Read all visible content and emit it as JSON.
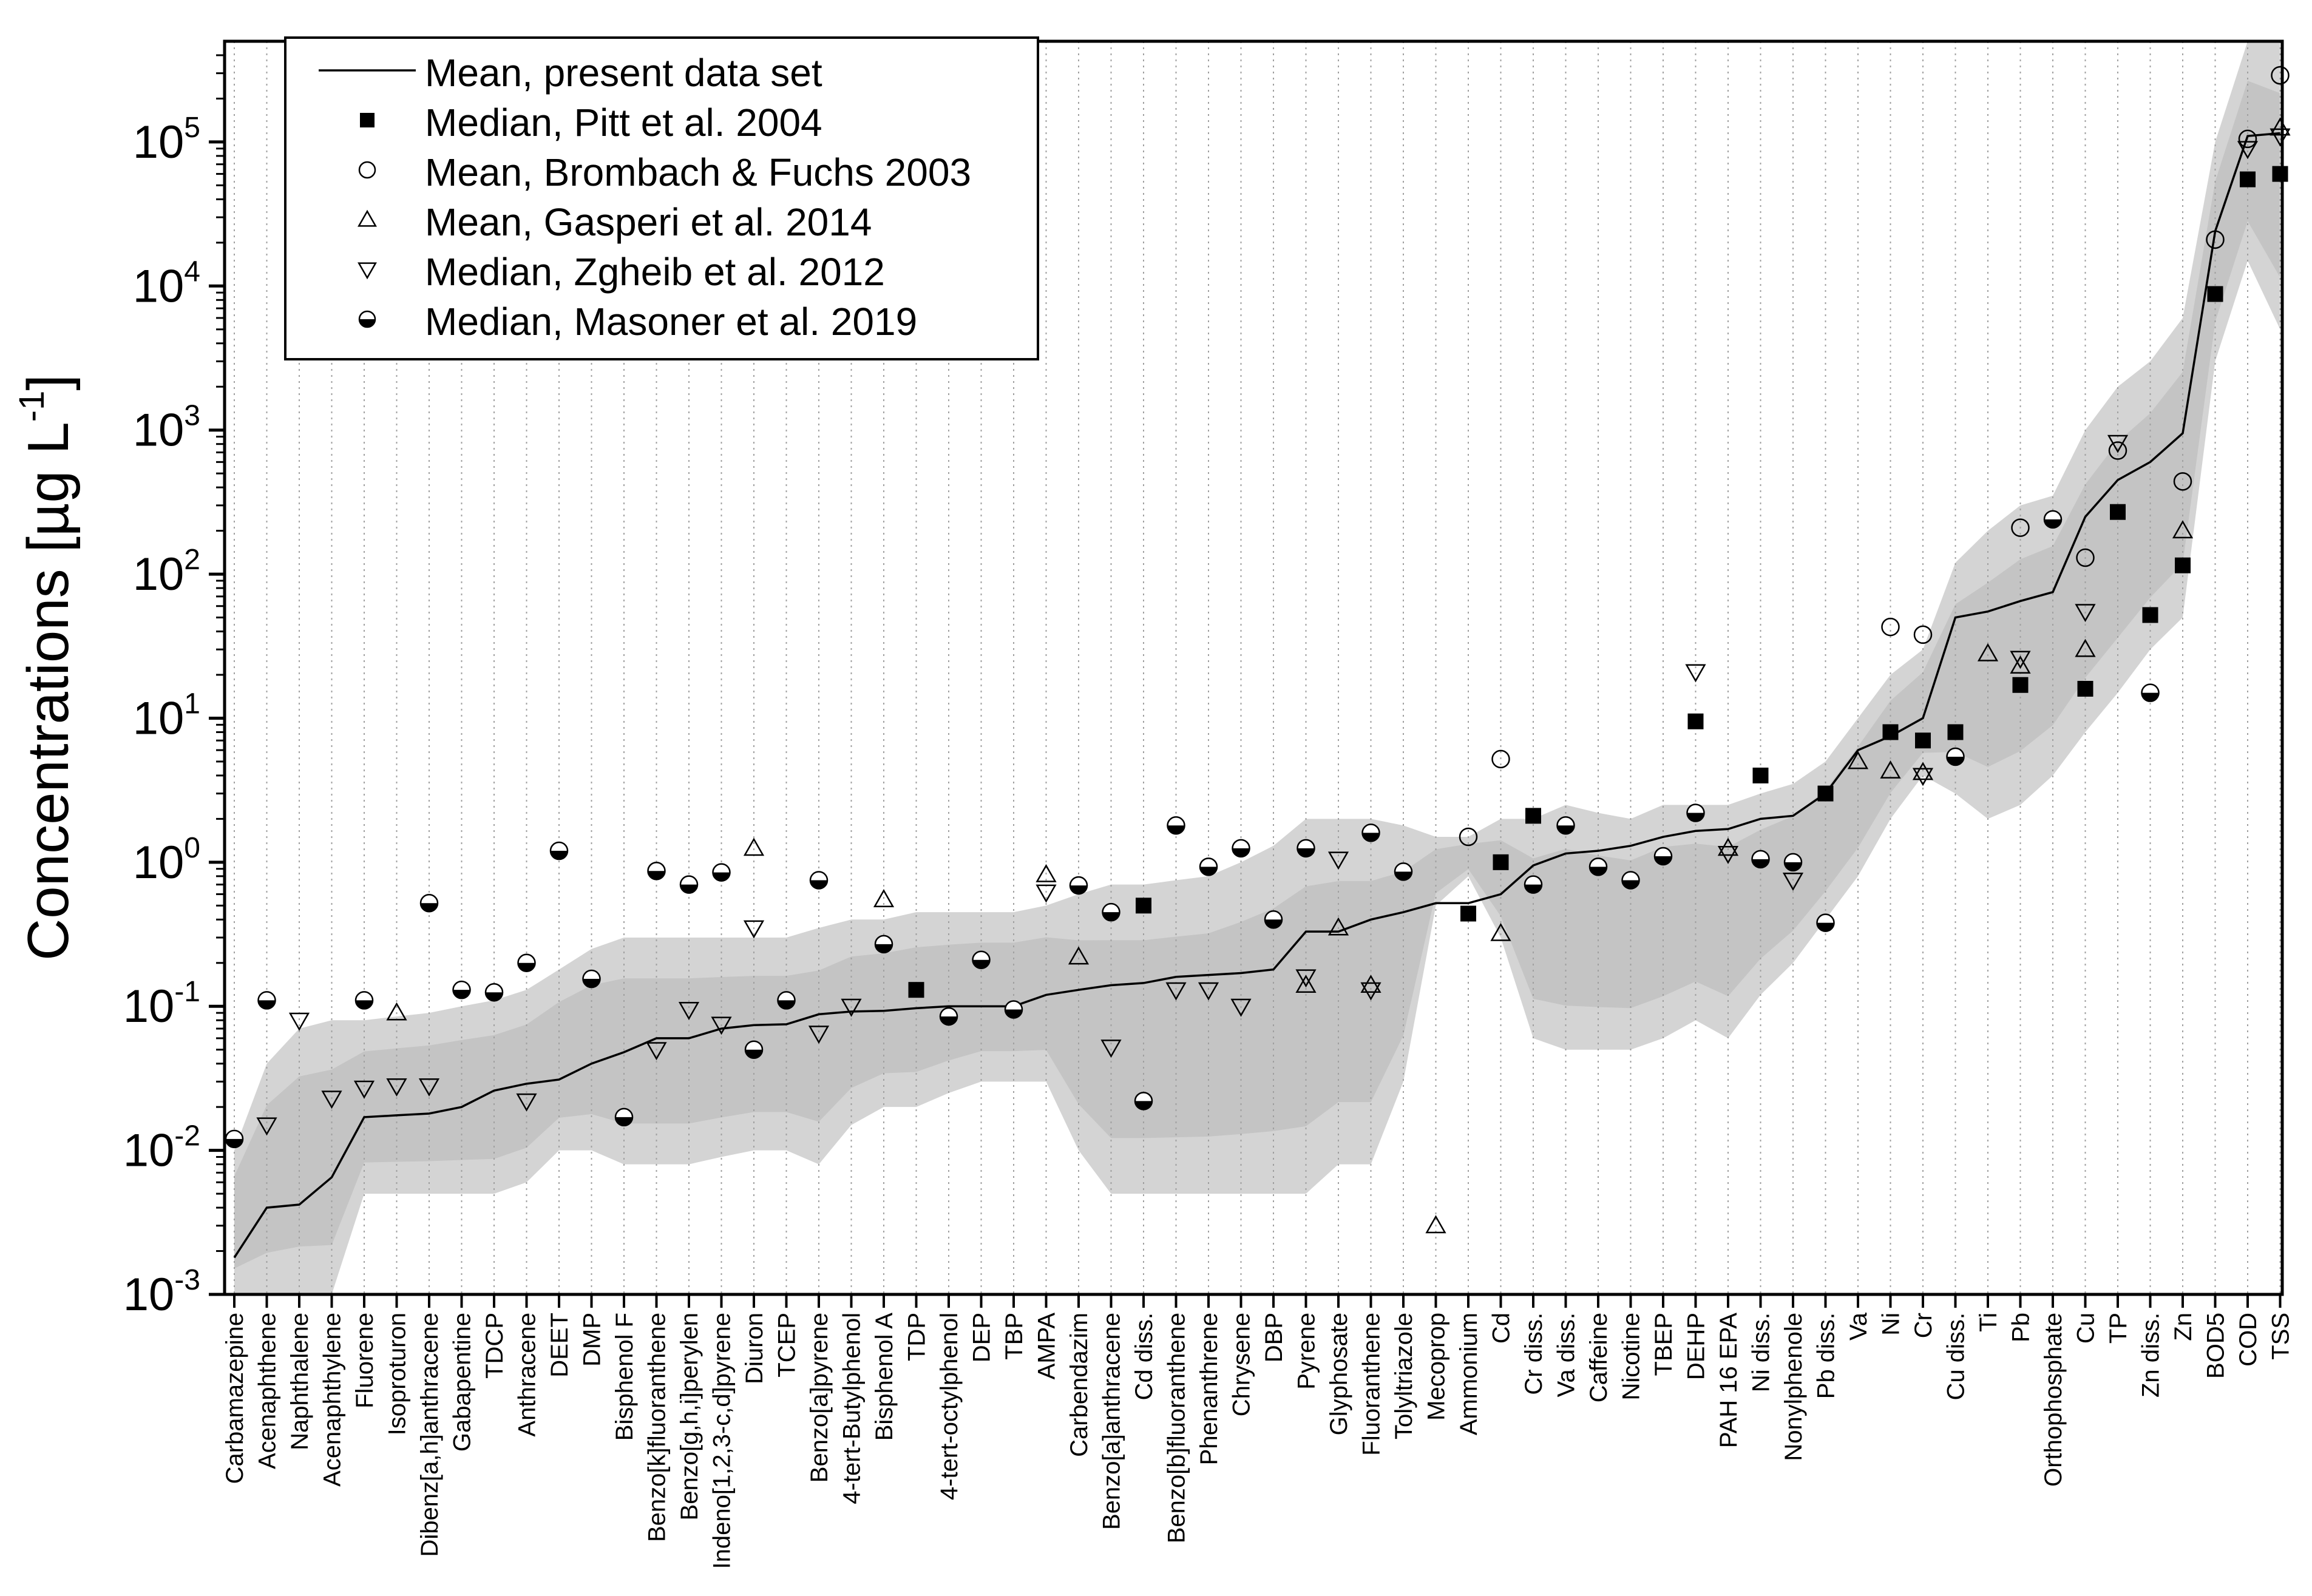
{
  "chart_data": {
    "type": "scatter",
    "title": "",
    "xlabel": "",
    "ylabel": "Concentrations [µg L",
    "ylabel_sup": "-1",
    "yscale": "log",
    "ylim": [
      0.001,
      500000
    ],
    "y_ticks": [
      {
        "value": 0.001,
        "base": "10",
        "exp": "-3"
      },
      {
        "value": 0.01,
        "base": "10",
        "exp": "-2"
      },
      {
        "value": 0.1,
        "base": "10",
        "exp": "-1"
      },
      {
        "value": 1,
        "base": "10",
        "exp": "0"
      },
      {
        "value": 10,
        "base": "10",
        "exp": "1"
      },
      {
        "value": 100,
        "base": "10",
        "exp": "2"
      },
      {
        "value": 1000,
        "base": "10",
        "exp": "3"
      },
      {
        "value": 10000,
        "base": "10",
        "exp": "4"
      },
      {
        "value": 100000,
        "base": "10",
        "exp": "5"
      }
    ],
    "categories": [
      "Carbamazepine",
      "Acenaphthene",
      "Naphthalene",
      "Acenaphthylene",
      "Fluorene",
      "Isoproturon",
      "Dibenz[a,h]anthracene",
      "Gabapentine",
      "TDCP",
      "Anthracene",
      "DEET",
      "DMP",
      "Bisphenol F",
      "Benzo[k]fluoranthene",
      "Benzo[g,h,i]perylen",
      "Indeno[1,2,3-c,d]pyrene",
      "Diuron",
      "TCEP",
      "Benzo[a]pyrene",
      "4-tert-Butylphenol",
      "Bisphenol A",
      "TDP",
      "4-tert-octylphenol",
      "DEP",
      "TBP",
      "AMPA",
      "Carbendazim",
      "Benzo[a]anthracene",
      "Cd diss.",
      "Benzo[b]fluoranthene",
      "Phenanthrene",
      "Chrysene",
      "DBP",
      "Pyrene",
      "Glyphosate",
      "Fluoranthene",
      "Tolyltriazole",
      "Mecoprop",
      "Ammonium",
      "Cd",
      "Cr diss.",
      "Va diss.",
      "Caffeine",
      "Nicotine",
      "TBEP",
      "DEHP",
      "PAH 16 EPA",
      "Ni diss.",
      "Nonylphenole",
      "Pb diss.",
      "Va",
      "Ni",
      "Cr",
      "Cu diss.",
      "Ti",
      "Pb",
      "Orthophosphate",
      "Cu",
      "TP",
      "Zn diss.",
      "Zn",
      "BOD5",
      "COD",
      "TSS"
    ],
    "band_upper": [
      0.01,
      0.04,
      0.07,
      0.08,
      0.08,
      0.085,
      0.09,
      0.1,
      0.11,
      0.13,
      0.18,
      0.25,
      0.3,
      0.3,
      0.3,
      0.3,
      0.3,
      0.3,
      0.35,
      0.4,
      0.4,
      0.45,
      0.45,
      0.45,
      0.45,
      0.5,
      0.6,
      0.7,
      0.7,
      0.75,
      0.8,
      1.0,
      1.3,
      2.0,
      2.0,
      2.0,
      1.8,
      1.5,
      1.5,
      2.0,
      2.0,
      2.5,
      2.2,
      2.0,
      2.5,
      2.5,
      2.5,
      3.0,
      3.5,
      5.0,
      10,
      20,
      30,
      120,
      200,
      300,
      350,
      1000,
      2000,
      3000,
      6000,
      100000,
      500000,
      500000
    ],
    "band_lower": [
      0.001,
      0.001,
      0.001,
      0.001,
      0.005,
      0.005,
      0.005,
      0.005,
      0.005,
      0.006,
      0.01,
      0.01,
      0.008,
      0.008,
      0.008,
      0.009,
      0.01,
      0.01,
      0.008,
      0.015,
      0.02,
      0.02,
      0.025,
      0.03,
      0.03,
      0.03,
      0.01,
      0.005,
      0.005,
      0.005,
      0.005,
      0.005,
      0.005,
      0.005,
      0.008,
      0.008,
      0.03,
      0.5,
      0.8,
      0.3,
      0.06,
      0.05,
      0.05,
      0.05,
      0.06,
      0.08,
      0.06,
      0.12,
      0.2,
      0.4,
      0.8,
      2,
      4,
      3,
      2,
      2.5,
      4,
      8,
      15,
      30,
      50,
      3000,
      15000,
      5000
    ],
    "series": [
      {
        "name": "Mean, present data set",
        "marker": "line",
        "values": [
          0.0018,
          0.004,
          0.0042,
          0.0065,
          0.017,
          0.0175,
          0.018,
          0.02,
          0.026,
          0.029,
          0.031,
          0.04,
          0.048,
          0.06,
          0.06,
          0.07,
          0.074,
          0.075,
          0.088,
          0.092,
          0.093,
          0.097,
          0.1,
          0.1,
          0.1,
          0.12,
          0.13,
          0.14,
          0.145,
          0.16,
          0.165,
          0.17,
          0.18,
          0.33,
          0.33,
          0.4,
          0.45,
          0.52,
          0.52,
          0.6,
          0.95,
          1.15,
          1.2,
          1.3,
          1.5,
          1.65,
          1.7,
          2.0,
          2.1,
          3.0,
          6.0,
          7.5,
          10,
          50,
          55,
          65,
          75,
          250,
          450,
          600,
          950,
          24000,
          110000,
          115000
        ]
      },
      {
        "name": "Median, Pitt et al. 2004",
        "marker": "filled-square",
        "values": [
          null,
          null,
          null,
          null,
          null,
          null,
          null,
          null,
          null,
          null,
          null,
          null,
          null,
          null,
          null,
          null,
          null,
          null,
          null,
          null,
          null,
          0.13,
          null,
          null,
          null,
          null,
          null,
          null,
          0.5,
          null,
          null,
          null,
          null,
          null,
          null,
          null,
          null,
          null,
          0.44,
          1.0,
          2.1,
          null,
          null,
          null,
          null,
          9.5,
          null,
          4.0,
          null,
          3.0,
          null,
          8.0,
          7.0,
          8.0,
          null,
          17,
          null,
          16,
          270,
          52,
          115,
          8800,
          55000,
          60000
        ]
      },
      {
        "name": "Mean, Brombach & Fuchs 2003",
        "marker": "open-circle",
        "values": [
          null,
          null,
          null,
          null,
          null,
          null,
          null,
          null,
          null,
          null,
          null,
          null,
          null,
          null,
          null,
          null,
          null,
          null,
          null,
          null,
          null,
          null,
          null,
          null,
          null,
          null,
          null,
          null,
          null,
          null,
          null,
          null,
          null,
          null,
          null,
          null,
          null,
          null,
          1.5,
          5.2,
          null,
          null,
          null,
          null,
          null,
          null,
          null,
          null,
          null,
          null,
          null,
          43,
          38,
          null,
          null,
          210,
          null,
          130,
          720,
          null,
          440,
          21000,
          105000,
          290000
        ]
      },
      {
        "name": "Mean, Gasperi et al. 2014",
        "marker": "open-triangle-up",
        "values": [
          null,
          null,
          null,
          null,
          null,
          0.09,
          null,
          null,
          null,
          null,
          null,
          null,
          null,
          null,
          null,
          null,
          1.25,
          null,
          null,
          null,
          0.55,
          null,
          null,
          null,
          null,
          0.82,
          0.22,
          null,
          null,
          null,
          null,
          null,
          null,
          0.14,
          0.35,
          0.14,
          null,
          0.003,
          null,
          0.32,
          null,
          null,
          null,
          null,
          null,
          null,
          1.25,
          null,
          null,
          null,
          5.0,
          4.3,
          4.2,
          null,
          28,
          23,
          null,
          30,
          null,
          null,
          200,
          null,
          null,
          125000
        ]
      },
      {
        "name": "Median, Zgheib et al. 2012",
        "marker": "open-triangle-down",
        "values": [
          null,
          0.015,
          0.08,
          0.023,
          0.027,
          0.028,
          0.028,
          null,
          null,
          0.022,
          null,
          null,
          null,
          0.05,
          0.095,
          0.075,
          0.35,
          null,
          0.065,
          0.1,
          null,
          null,
          null,
          null,
          null,
          0.62,
          null,
          0.052,
          null,
          0.13,
          0.13,
          0.1,
          null,
          0.16,
          1.05,
          0.13,
          null,
          null,
          null,
          null,
          null,
          null,
          null,
          null,
          null,
          21,
          1.15,
          null,
          0.75,
          null,
          null,
          null,
          4.0,
          null,
          null,
          26,
          null,
          55,
          820,
          null,
          null,
          null,
          90000,
          110000
        ]
      },
      {
        "name": "Median, Masoner et al. 2019",
        "marker": "half-filled-circle",
        "values": [
          0.012,
          0.11,
          null,
          null,
          0.11,
          null,
          0.52,
          0.13,
          0.125,
          0.2,
          1.2,
          0.155,
          0.017,
          0.87,
          0.7,
          0.85,
          0.05,
          0.11,
          0.75,
          null,
          0.27,
          null,
          0.085,
          0.21,
          0.095,
          null,
          0.69,
          0.45,
          0.022,
          1.8,
          0.93,
          1.25,
          0.4,
          1.25,
          null,
          1.6,
          0.86,
          null,
          null,
          null,
          0.7,
          1.8,
          0.93,
          0.75,
          1.1,
          2.2,
          null,
          1.05,
          1.0,
          0.38,
          null,
          null,
          null,
          5.4,
          null,
          null,
          240,
          null,
          null,
          15,
          null,
          null,
          null,
          null
        ]
      }
    ],
    "legend_position": "top-left",
    "grid": "vertical dotted at each category"
  }
}
